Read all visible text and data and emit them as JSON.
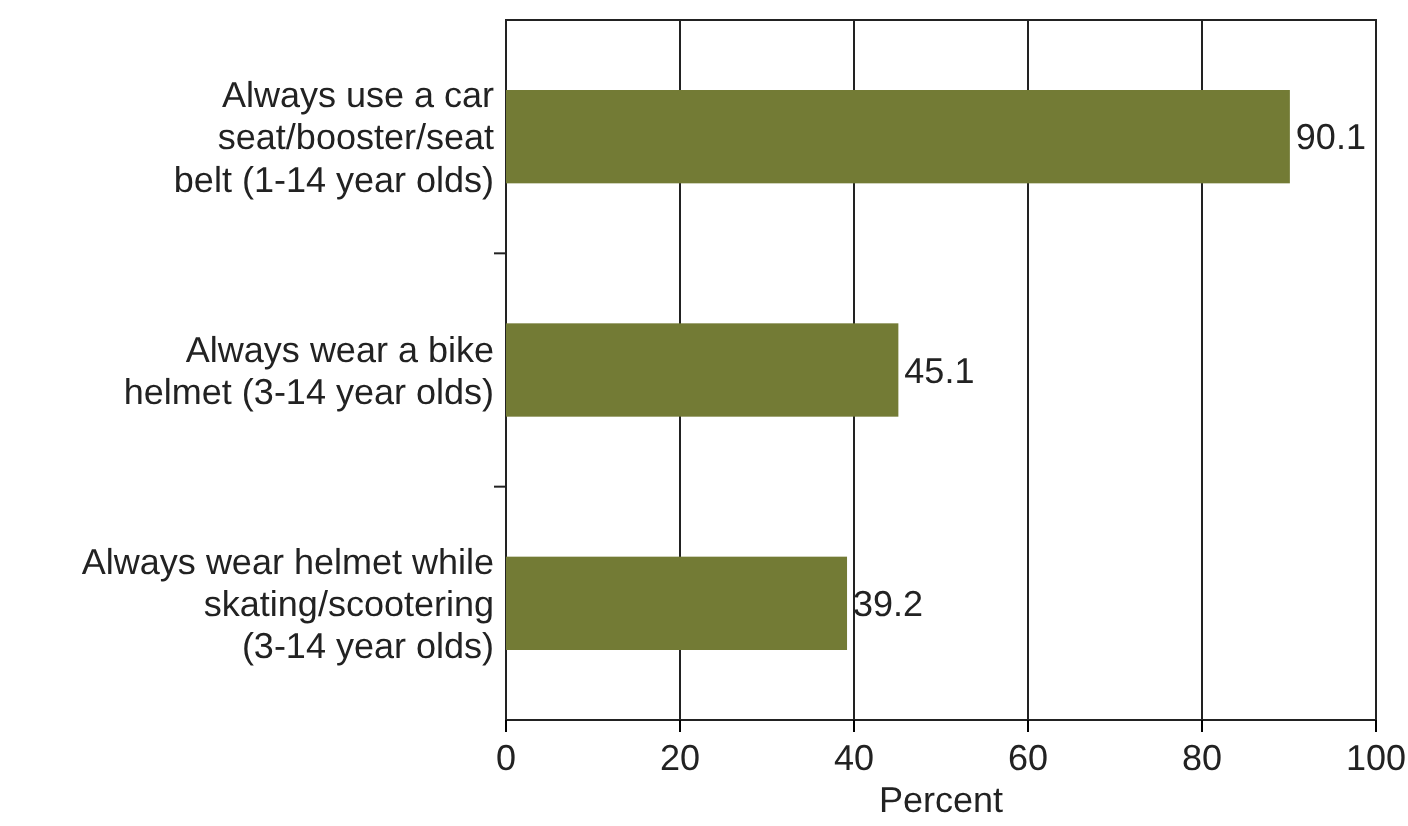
{
  "chart_data": {
    "type": "bar",
    "orientation": "horizontal",
    "categories": [
      "Always use a car\nseat/booster/seat\nbelt (1-14 year olds)",
      "Always wear a bike\nhelmet (3-14 year olds)",
      "Always wear helmet while\nskating/scootering\n(3-14 year olds)"
    ],
    "values": [
      90.1,
      45.1,
      39.2
    ],
    "color": "#737b35",
    "xlim": [
      0,
      100
    ],
    "xticks": [
      0,
      20,
      40,
      60,
      80,
      100
    ],
    "xlabel": "Percent",
    "grid": "x",
    "data_labels": true
  }
}
